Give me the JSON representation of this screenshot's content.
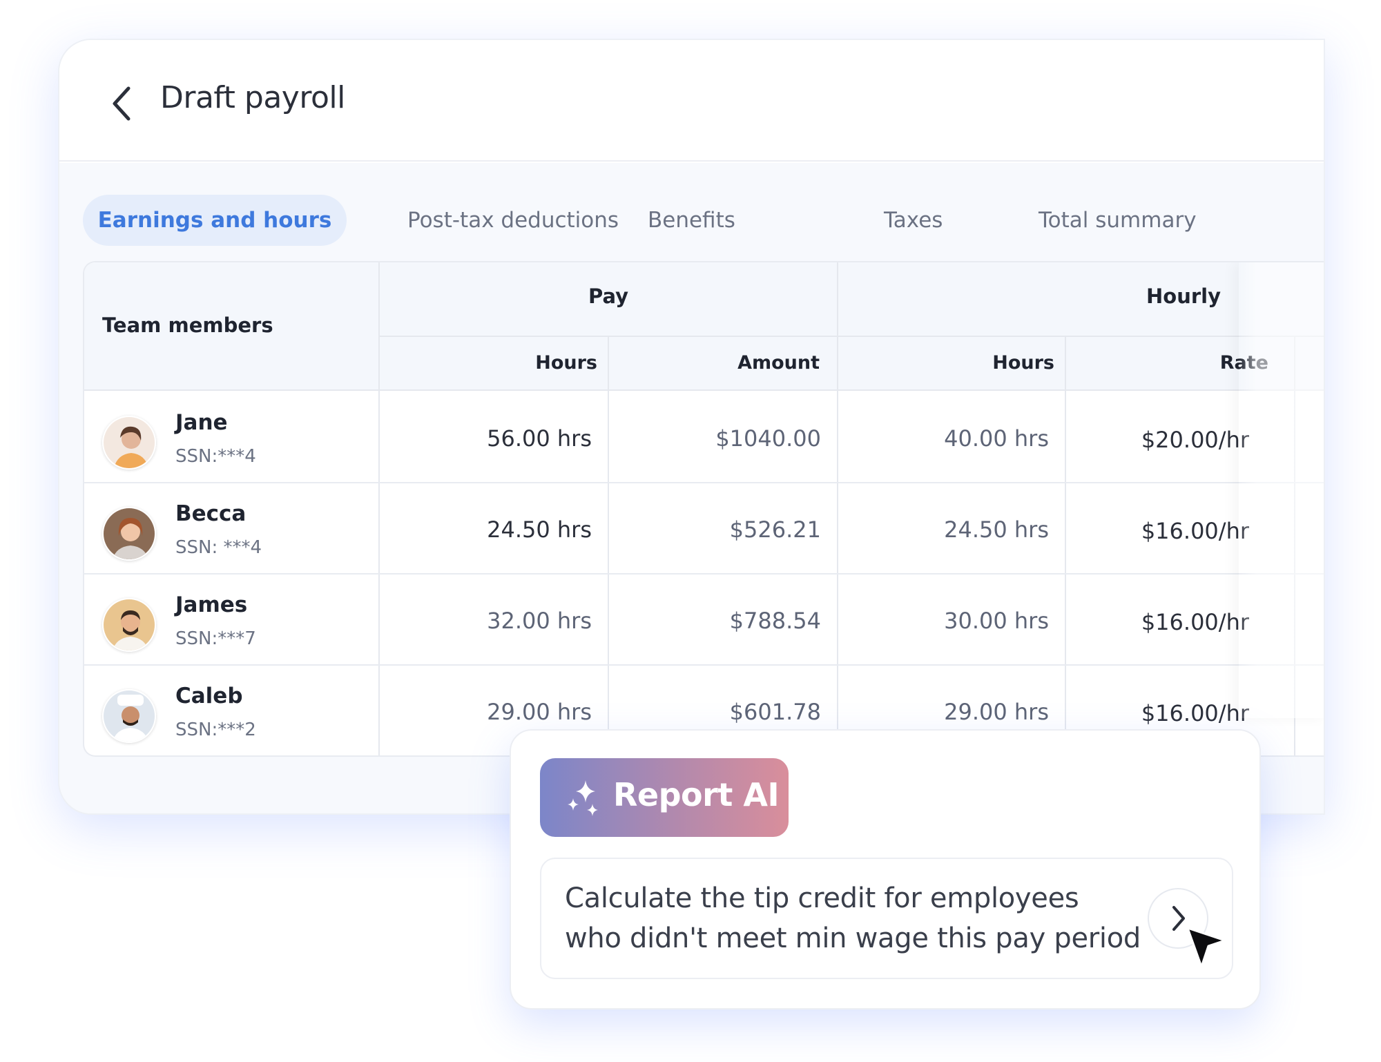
{
  "header": {
    "title": "Draft payroll",
    "back_icon": "chevron-left-icon"
  },
  "tabs": [
    {
      "label": "Earnings and hours",
      "active": true
    },
    {
      "label": "Post-tax  deductions",
      "active": false
    },
    {
      "label": "Benefits",
      "active": false
    },
    {
      "label": "Taxes",
      "active": false
    },
    {
      "label": "Total summary",
      "active": false
    }
  ],
  "table": {
    "col_team": "Team members",
    "group_pay": "Pay",
    "group_hourly": "Hourly",
    "pay_hours": "Hours",
    "pay_amount": "Amount",
    "hourly_hours": "Hours",
    "hourly_rate": "Rate",
    "rows": [
      {
        "name": "Jane",
        "ssn": "SSN:***4",
        "pay_hours": "56.00 hrs",
        "amount": "$1040.00",
        "hourly_hours": "40.00 hrs",
        "rate": "$20.00/hr"
      },
      {
        "name": "Becca",
        "ssn": "SSN: ***4",
        "pay_hours": "24.50 hrs",
        "amount": "$526.21",
        "hourly_hours": "24.50 hrs",
        "rate": "$16.00/hr"
      },
      {
        "name": "James",
        "ssn": "SSN:***7",
        "pay_hours": "32.00 hrs",
        "amount": "$788.54",
        "hourly_hours": "30.00 hrs",
        "rate": "$16.00/hr"
      },
      {
        "name": "Caleb",
        "ssn": "SSN:***2",
        "pay_hours": "29.00 hrs",
        "amount": "$601.78",
        "hourly_hours": "29.00 hrs",
        "rate": "$16.00/hr"
      }
    ]
  },
  "ai": {
    "badge_label": "Report AI",
    "badge_icon": "sparkle-icon",
    "prompt_line1": "Calculate the tip credit for employees",
    "prompt_line2": "who didn't meet min wage this pay period",
    "send_icon": "chevron-right-icon",
    "cursor_icon": "cursor-arrow-icon"
  },
  "colors": {
    "accent": "#3e79dd",
    "tab_active_bg": "#e5edfb",
    "badge_gradient_start": "#7c86c9",
    "badge_gradient_end": "#d98e9b"
  }
}
